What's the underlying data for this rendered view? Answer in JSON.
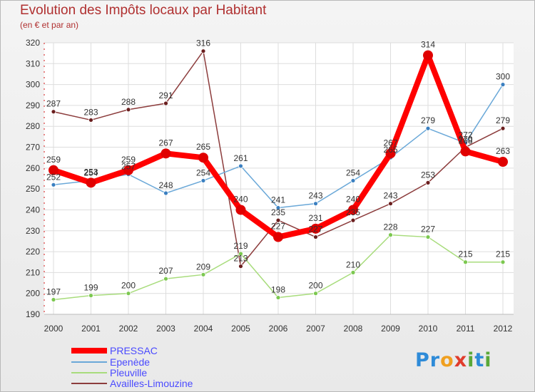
{
  "header": {
    "title": "Evolution des Impôts locaux par Habitant",
    "subtitle": "(en € et par an)"
  },
  "logo": {
    "letters": [
      {
        "ch": "P",
        "color": "#2e8bd8"
      },
      {
        "ch": "r",
        "color": "#2e8bd8"
      },
      {
        "ch": "o",
        "color": "#f0a020"
      },
      {
        "ch": "x",
        "color": "#e03c2c"
      },
      {
        "ch": "i",
        "color": "#5aa838"
      },
      {
        "ch": "t",
        "color": "#2e8bd8"
      },
      {
        "ch": "i",
        "color": "#5aa838"
      }
    ]
  },
  "chart_data": {
    "type": "line",
    "title": "Evolution des Impôts locaux par Habitant",
    "subtitle": "(en € et par an)",
    "xlabel": "",
    "ylabel": "",
    "x": [
      "2000",
      "2001",
      "2002",
      "2003",
      "2004",
      "2005",
      "2006",
      "2007",
      "2008",
      "2009",
      "2010",
      "2011",
      "2012"
    ],
    "ylim": [
      190,
      320
    ],
    "yticks": [
      "190",
      "200",
      "210",
      "220",
      "230",
      "240",
      "250",
      "260",
      "270",
      "280",
      "290",
      "300",
      "310",
      "320"
    ],
    "grid": true,
    "legend_position": "bottom-left",
    "series": [
      {
        "name": "PRESSAC",
        "color": "#ff0000",
        "marker": "#e00000",
        "width": 8,
        "radius": 7,
        "values": [
          259,
          253,
          259,
          267,
          265,
          240,
          227,
          231,
          240,
          267,
          314,
          268,
          263
        ],
        "labels": [
          "259",
          "253",
          "259",
          "267",
          "265",
          "240",
          "227",
          "231",
          "240",
          "267",
          "314",
          "268",
          "263"
        ]
      },
      {
        "name": "Epenède",
        "color": "#6aa8d8",
        "marker": "#3a7fc0",
        "width": 1.5,
        "radius": 3,
        "values": [
          252,
          254,
          257,
          248,
          254,
          261,
          241,
          243,
          254,
          265,
          279,
          272,
          300
        ],
        "labels": [
          "252",
          "254",
          "257",
          "248",
          "254",
          "261",
          "241",
          "243",
          "254",
          "265",
          "279",
          "272",
          "300"
        ]
      },
      {
        "name": "Pleuville",
        "color": "#a8dc7c",
        "marker": "#7cc850",
        "width": 1.5,
        "radius": 3,
        "values": [
          197,
          199,
          200,
          207,
          209,
          219,
          198,
          200,
          210,
          228,
          227,
          215,
          215
        ],
        "labels": [
          "197",
          "199",
          "200",
          "207",
          "209",
          "219",
          "198",
          "200",
          "210",
          "228",
          "227",
          "215",
          "215"
        ]
      },
      {
        "name": "Availles-Limouzine",
        "color": "#8c3c3c",
        "marker": "#6a1e1e",
        "width": 1.5,
        "radius": 3,
        "values": [
          287,
          283,
          288,
          291,
          316,
          213,
          235,
          227,
          235,
          243,
          253,
          270,
          279
        ],
        "labels": [
          "287",
          "283",
          "288",
          "291",
          "316",
          "213",
          "235",
          "227",
          "235",
          "243",
          "253",
          "270",
          "279"
        ]
      }
    ]
  }
}
